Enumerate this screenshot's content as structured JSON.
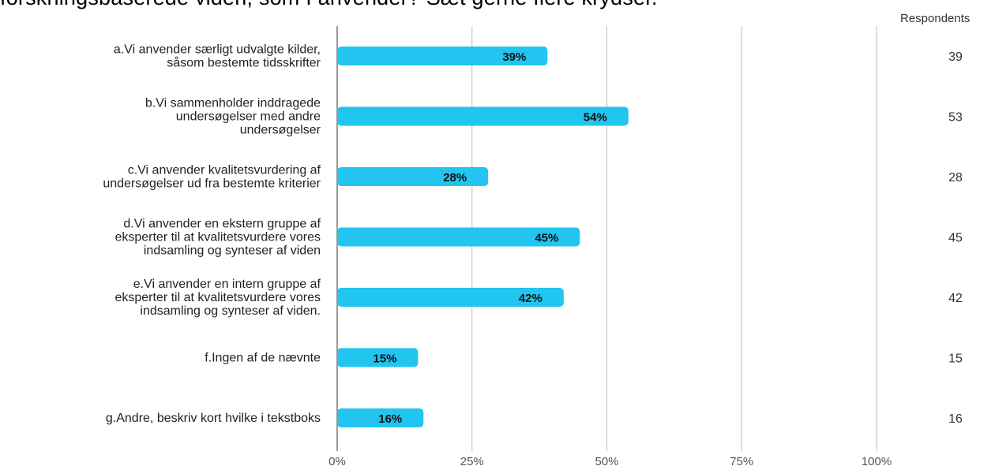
{
  "title": "forskningsbaserede viden, som I anvender? Sæt gerne flere krydser.",
  "respondents_header": "Respondents",
  "chart_data": {
    "type": "bar",
    "orientation": "horizontal",
    "categories": [
      [
        "a.Vi anvender særligt udvalgte kilder,",
        "såsom bestemte tidsskrifter"
      ],
      [
        "b.Vi sammenholder inddragede",
        "undersøgelser med andre",
        "undersøgelser"
      ],
      [
        "c.Vi anvender kvalitetsvurdering af",
        "undersøgelser ud fra bestemte kriterier"
      ],
      [
        "d.Vi anvender en ekstern gruppe af",
        "eksperter til at kvalitetsvurdere vores",
        "indsamling og synteser af viden"
      ],
      [
        "e.Vi anvender en intern gruppe af",
        "eksperter til at kvalitetsvurdere vores",
        "indsamling og synteser af viden."
      ],
      [
        "f.Ingen af de nævnte"
      ],
      [
        "g.Andre, beskriv kort hvilke i tekstboks"
      ]
    ],
    "values": [
      39,
      54,
      28,
      45,
      42,
      15,
      16
    ],
    "value_labels": [
      "39%",
      "54%",
      "28%",
      "45%",
      "42%",
      "15%",
      "16%"
    ],
    "respondents": [
      39,
      53,
      28,
      45,
      42,
      15,
      16
    ],
    "xticks": [
      0,
      25,
      50,
      75,
      100
    ],
    "xtick_labels": [
      "0%",
      "25%",
      "50%",
      "75%",
      "100%"
    ],
    "xlim": [
      0,
      100
    ],
    "grid": true,
    "bar_color": "#22c4f0"
  }
}
